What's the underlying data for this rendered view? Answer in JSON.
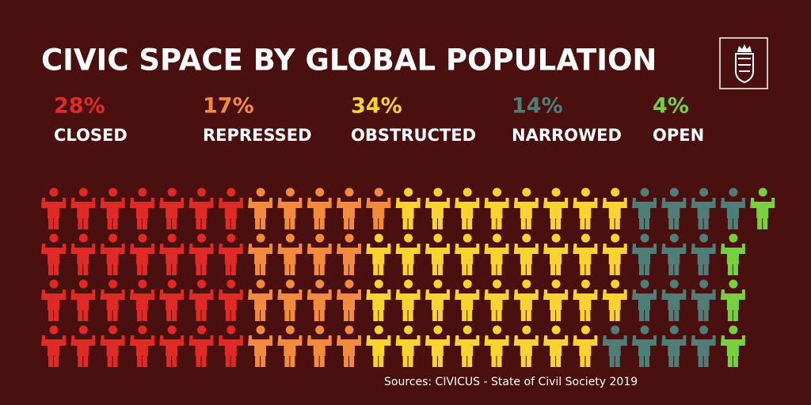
{
  "chart_data": {
    "type": "pictogram",
    "title": "CIVIC SPACE BY GLOBAL POPULATION",
    "categories": [
      "CLOSED",
      "REPRESSED",
      "OBSTRUCTED",
      "NARROWED",
      "OPEN"
    ],
    "values": [
      28,
      17,
      34,
      14,
      4
    ],
    "value_labels": [
      "28%",
      "17%",
      "34%",
      "14%",
      "4%"
    ],
    "colors": [
      "#e02a26",
      "#f28c3c",
      "#fbd330",
      "#4f7d78",
      "#76d13f"
    ],
    "source": "Sources: CIVICUS - State of Civil Society 2019"
  }
}
